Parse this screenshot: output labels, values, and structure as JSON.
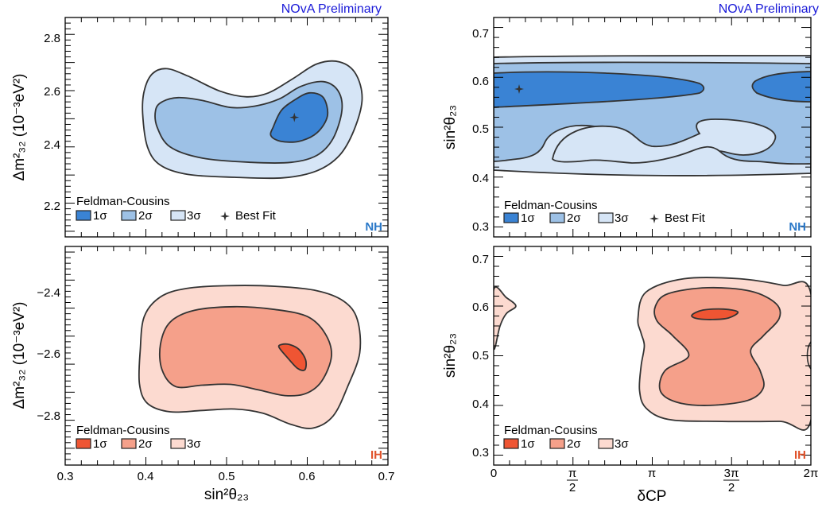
{
  "colors": {
    "nh": [
      "#3a83d4",
      "#9dc1e6",
      "#d6e5f6"
    ],
    "ih": [
      "#ef5533",
      "#f5a08a",
      "#fcdad0"
    ],
    "preliminary": "#1a1ad8"
  },
  "chart_data": [
    {
      "type": "contour",
      "preliminary": "NOvA Preliminary",
      "xlabel": "sin²θ₂₃",
      "ylabel": "Δm²₃₂ (10⁻³eV²)",
      "xlim": [
        0.3,
        0.7
      ],
      "ylim": [
        2.08,
        2.86
      ],
      "yticks": [
        "2.2",
        "2.4",
        "2.6",
        "2.8"
      ],
      "legend_title": "Feldman-Cousins",
      "legend": [
        "1σ",
        "2σ",
        "3σ"
      ],
      "best_fit_label": "Best Fit",
      "tag": "NH",
      "best_fit": [
        0.584,
        2.505
      ],
      "contours": {
        "3": [
          [
            0.408,
            2.66
          ],
          [
            0.426,
            2.678
          ],
          [
            0.452,
            2.652
          ],
          [
            0.492,
            2.598
          ],
          [
            0.525,
            2.578
          ],
          [
            0.552,
            2.592
          ],
          [
            0.582,
            2.642
          ],
          [
            0.612,
            2.695
          ],
          [
            0.64,
            2.702
          ],
          [
            0.66,
            2.66
          ],
          [
            0.668,
            2.57
          ],
          [
            0.658,
            2.46
          ],
          [
            0.64,
            2.37
          ],
          [
            0.612,
            2.315
          ],
          [
            0.57,
            2.29
          ],
          [
            0.51,
            2.292
          ],
          [
            0.452,
            2.302
          ],
          [
            0.418,
            2.335
          ],
          [
            0.402,
            2.4
          ],
          [
            0.396,
            2.52
          ],
          [
            0.398,
            2.6
          ]
        ],
        "2": [
          [
            0.42,
            2.56
          ],
          [
            0.44,
            2.575
          ],
          [
            0.47,
            2.565
          ],
          [
            0.505,
            2.54
          ],
          [
            0.535,
            2.545
          ],
          [
            0.565,
            2.57
          ],
          [
            0.592,
            2.615
          ],
          [
            0.62,
            2.632
          ],
          [
            0.638,
            2.6
          ],
          [
            0.643,
            2.53
          ],
          [
            0.632,
            2.43
          ],
          [
            0.612,
            2.37
          ],
          [
            0.58,
            2.345
          ],
          [
            0.53,
            2.345
          ],
          [
            0.47,
            2.36
          ],
          [
            0.43,
            2.4
          ],
          [
            0.414,
            2.47
          ],
          [
            0.412,
            2.53
          ]
        ],
        "1": [
          [
            0.558,
            2.472
          ],
          [
            0.568,
            2.53
          ],
          [
            0.585,
            2.568
          ],
          [
            0.603,
            2.592
          ],
          [
            0.62,
            2.575
          ],
          [
            0.625,
            2.51
          ],
          [
            0.612,
            2.45
          ],
          [
            0.59,
            2.42
          ],
          [
            0.567,
            2.42
          ],
          [
            0.555,
            2.44
          ]
        ]
      }
    },
    {
      "type": "contour",
      "preliminary": "NOvA Preliminary",
      "xlabel": "",
      "ylabel": "sin²θ₂₃",
      "xlim": [
        0,
        2
      ],
      "ylim": [
        0.28,
        0.72
      ],
      "yticks": [
        "0.3",
        "0.4",
        "0.5",
        "0.6",
        "0.7"
      ],
      "legend_title": "Feldman-Cousins",
      "legend": [
        "1σ",
        "2σ",
        "3σ"
      ],
      "best_fit_label": "Best Fit",
      "tag": "NH",
      "best_fit": [
        0.17,
        0.585
      ]
    },
    {
      "type": "contour",
      "xlabel": "sin²θ₂₃",
      "ylabel": "Δm²₃₂ (10⁻³eV²)",
      "xlim": [
        0.3,
        0.7
      ],
      "ylim": [
        -2.96,
        -2.18
      ],
      "xticks": [
        "0.3",
        "0.4",
        "0.5",
        "0.6",
        "0.7"
      ],
      "yticks": [
        "−2.4",
        "−2.6",
        "−2.8"
      ],
      "legend_title": "Feldman-Cousins",
      "legend": [
        "1σ",
        "2σ",
        "3σ"
      ],
      "tag": "IH",
      "contours": {
        "3": [
          [
            0.398,
            2.43
          ],
          [
            0.418,
            2.36
          ],
          [
            0.45,
            2.33
          ],
          [
            0.5,
            2.32
          ],
          [
            0.56,
            2.322
          ],
          [
            0.612,
            2.338
          ],
          [
            0.645,
            2.375
          ],
          [
            0.662,
            2.44
          ],
          [
            0.665,
            2.56
          ],
          [
            0.65,
            2.68
          ],
          [
            0.632,
            2.785
          ],
          [
            0.607,
            2.828
          ],
          [
            0.58,
            2.815
          ],
          [
            0.545,
            2.775
          ],
          [
            0.51,
            2.76
          ],
          [
            0.47,
            2.765
          ],
          [
            0.43,
            2.77
          ],
          [
            0.402,
            2.74
          ],
          [
            0.392,
            2.67
          ],
          [
            0.393,
            2.55
          ]
        ],
        "2": [
          [
            0.418,
            2.53
          ],
          [
            0.43,
            2.45
          ],
          [
            0.46,
            2.408
          ],
          [
            0.51,
            2.395
          ],
          [
            0.56,
            2.405
          ],
          [
            0.6,
            2.43
          ],
          [
            0.622,
            2.49
          ],
          [
            0.63,
            2.57
          ],
          [
            0.618,
            2.66
          ],
          [
            0.598,
            2.705
          ],
          [
            0.572,
            2.712
          ],
          [
            0.54,
            2.692
          ],
          [
            0.505,
            2.672
          ],
          [
            0.47,
            2.675
          ],
          [
            0.437,
            2.68
          ],
          [
            0.42,
            2.62
          ]
        ],
        "1": [
          [
            0.565,
            2.54
          ],
          [
            0.575,
            2.575
          ],
          [
            0.588,
            2.615
          ],
          [
            0.597,
            2.62
          ],
          [
            0.598,
            2.585
          ],
          [
            0.59,
            2.548
          ],
          [
            0.578,
            2.53
          ],
          [
            0.568,
            2.53
          ]
        ]
      }
    },
    {
      "type": "contour",
      "xlabel": "δCP",
      "ylabel": "sin²θ₂₃",
      "xlim": [
        0,
        2
      ],
      "ylim": [
        0.28,
        0.72
      ],
      "xticks": [
        "0",
        "π/2",
        "π",
        "3π/2",
        "2π"
      ],
      "yticks": [
        "0.3",
        "0.4",
        "0.5",
        "0.6",
        "0.7"
      ],
      "legend_title": "Feldman-Cousins",
      "legend": [
        "1σ",
        "2σ",
        "3σ"
      ],
      "tag": "IH",
      "contours": {
        "3a": [
          [
            0.0,
            0.633
          ],
          [
            0.08,
            0.617
          ],
          [
            0.14,
            0.6
          ],
          [
            0.08,
            0.585
          ],
          [
            0.04,
            0.56
          ],
          [
            0.0,
            0.515
          ]
        ],
        "3b": [
          [
            0.91,
            0.575
          ],
          [
            0.96,
            0.628
          ],
          [
            1.2,
            0.655
          ],
          [
            1.55,
            0.655
          ],
          [
            1.82,
            0.642
          ],
          [
            2.0,
            0.625
          ],
          [
            2.0,
            0.37
          ],
          [
            1.8,
            0.368
          ],
          [
            1.4,
            0.368
          ],
          [
            1.1,
            0.372
          ],
          [
            0.96,
            0.395
          ],
          [
            0.92,
            0.43
          ],
          [
            0.93,
            0.48
          ],
          [
            0.95,
            0.52
          ],
          [
            0.93,
            0.545
          ]
        ],
        "2": [
          [
            1.02,
            0.6
          ],
          [
            1.1,
            0.625
          ],
          [
            1.35,
            0.637
          ],
          [
            1.62,
            0.63
          ],
          [
            1.78,
            0.605
          ],
          [
            1.8,
            0.575
          ],
          [
            1.7,
            0.54
          ],
          [
            1.62,
            0.51
          ],
          [
            1.68,
            0.47
          ],
          [
            1.7,
            0.435
          ],
          [
            1.6,
            0.41
          ],
          [
            1.35,
            0.4
          ],
          [
            1.15,
            0.407
          ],
          [
            1.05,
            0.43
          ],
          [
            1.08,
            0.47
          ],
          [
            1.23,
            0.5
          ],
          [
            1.13,
            0.54
          ],
          [
            1.03,
            0.57
          ]
        ],
        "1": [
          [
            1.25,
            0.582
          ],
          [
            1.32,
            0.592
          ],
          [
            1.45,
            0.594
          ],
          [
            1.54,
            0.588
          ],
          [
            1.48,
            0.576
          ],
          [
            1.38,
            0.573
          ],
          [
            1.28,
            0.575
          ]
        ]
      }
    }
  ]
}
